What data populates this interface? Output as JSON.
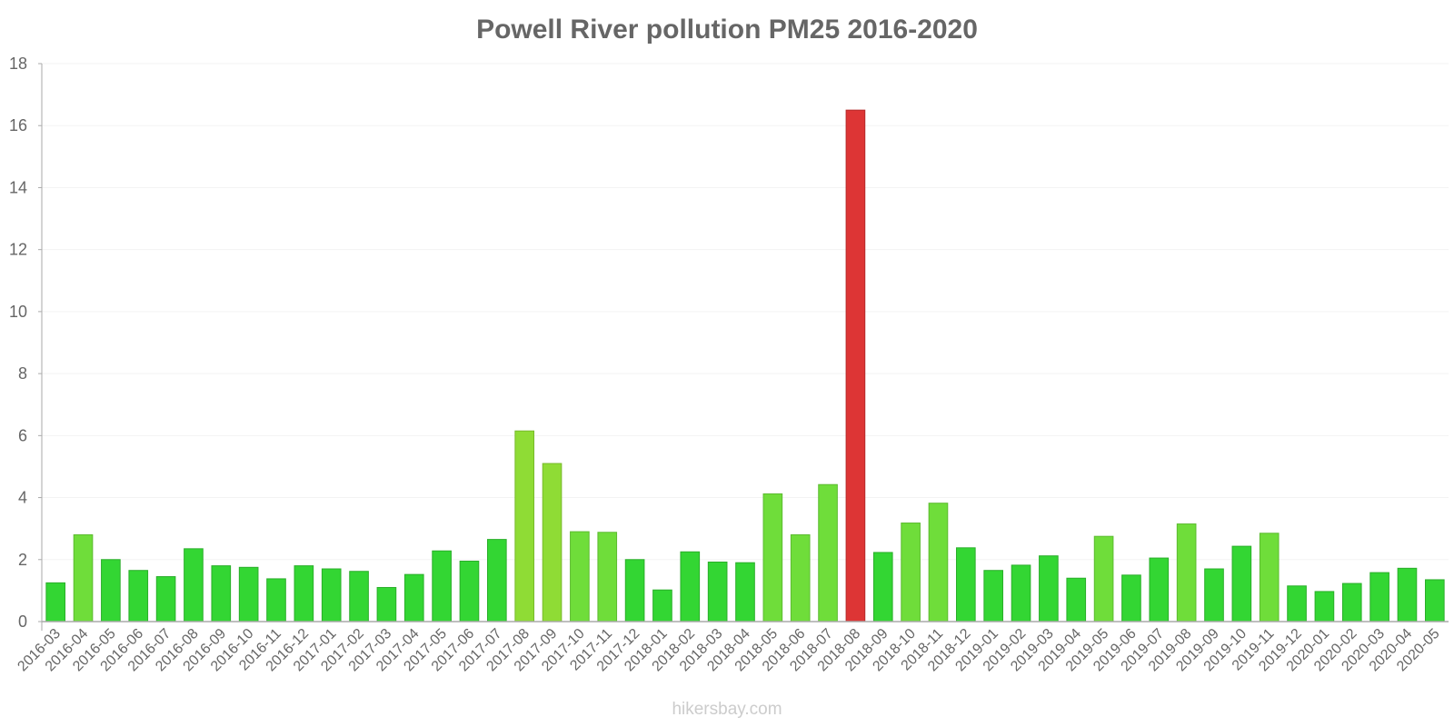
{
  "chart_data": {
    "type": "bar",
    "title": "Powell River pollution PM25 2016-2020",
    "xlabel": "",
    "ylabel": "",
    "ylim": [
      0,
      18
    ],
    "yticks": [
      0,
      2,
      4,
      6,
      8,
      10,
      12,
      14,
      16,
      18
    ],
    "grid": true,
    "categories": [
      "2016-03",
      "2016-04",
      "2016-05",
      "2016-06",
      "2016-07",
      "2016-08",
      "2016-09",
      "2016-10",
      "2016-11",
      "2016-12",
      "2017-01",
      "2017-02",
      "2017-03",
      "2017-04",
      "2017-05",
      "2017-06",
      "2017-07",
      "2017-08",
      "2017-09",
      "2017-10",
      "2017-11",
      "2017-12",
      "2018-01",
      "2018-02",
      "2018-03",
      "2018-04",
      "2018-05",
      "2018-06",
      "2018-07",
      "2018-08",
      "2018-09",
      "2018-10",
      "2018-11",
      "2018-12",
      "2019-01",
      "2019-02",
      "2019-03",
      "2019-04",
      "2019-05",
      "2019-06",
      "2019-07",
      "2019-08",
      "2019-09",
      "2019-10",
      "2019-11",
      "2019-12",
      "2020-01",
      "2020-02",
      "2020-03",
      "2020-04",
      "2020-05"
    ],
    "values": [
      1.25,
      2.8,
      2.0,
      1.65,
      1.45,
      2.35,
      1.8,
      1.75,
      1.38,
      1.8,
      1.7,
      1.62,
      1.1,
      1.52,
      2.28,
      1.95,
      2.65,
      6.15,
      5.1,
      2.9,
      2.88,
      2.0,
      1.02,
      2.25,
      1.92,
      1.9,
      4.12,
      2.8,
      4.42,
      16.5,
      2.23,
      3.18,
      3.82,
      2.38,
      1.65,
      1.82,
      2.12,
      1.4,
      2.75,
      1.5,
      2.05,
      3.15,
      1.7,
      2.43,
      2.85,
      1.15,
      0.97,
      1.23,
      1.58,
      1.72,
      1.35
    ],
    "colors": {
      "good": "#33d633",
      "good_border": "#2aae2a",
      "moderate": "#6fdd3a",
      "moderate_border": "#5cbb30",
      "elevated": "#8fdc35",
      "elevated_border": "#78b92c",
      "unhealthy": "#dd3535",
      "unhealthy_border": "#b52b2b",
      "axis": "#aaaaaa",
      "grid": "#f3f3f3",
      "tick_text": "#666666"
    }
  },
  "watermark": "hikersbay.com"
}
